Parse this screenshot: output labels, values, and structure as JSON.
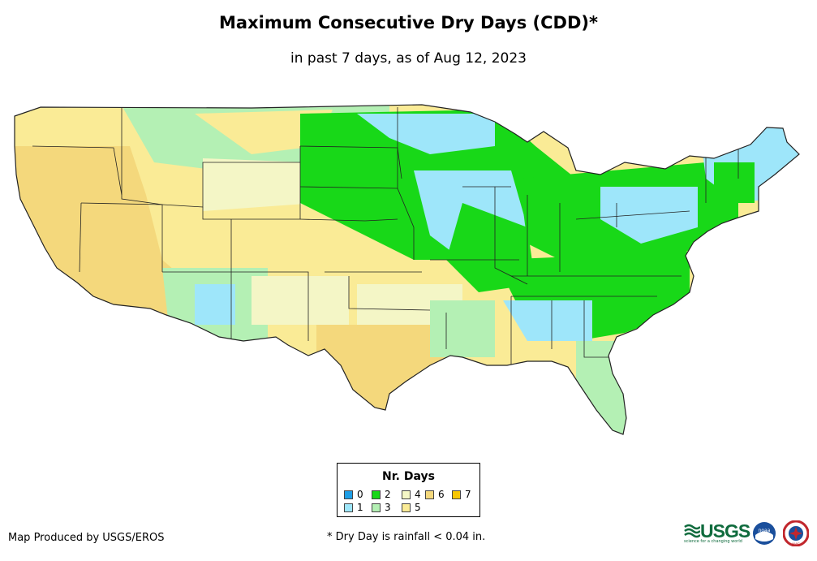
{
  "title": "Maximum Consecutive Dry Days (CDD)*",
  "subtitle": "in past 7 days, as of Aug 12, 2023",
  "legend": {
    "title": "Nr. Days",
    "items": [
      {
        "label": "0",
        "color": "#1e9ee6"
      },
      {
        "label": "1",
        "color": "#9ee6fa"
      },
      {
        "label": "2",
        "color": "#18d818"
      },
      {
        "label": "3",
        "color": "#b4f0b4"
      },
      {
        "label": "4",
        "color": "#f4f6c6"
      },
      {
        "label": "5",
        "color": "#faeb96"
      },
      {
        "label": "6",
        "color": "#f4d87c"
      },
      {
        "label": "7",
        "color": "#f7c600"
      }
    ]
  },
  "footer": {
    "credit": "Map Produced by USGS/EROS",
    "footnote": "* Dry Day is rainfall < 0.04 in."
  },
  "logos": {
    "usgs": "USGS",
    "usgs_tagline": "science for a changing world",
    "noaa": "noaa",
    "nws": "NWS"
  }
}
